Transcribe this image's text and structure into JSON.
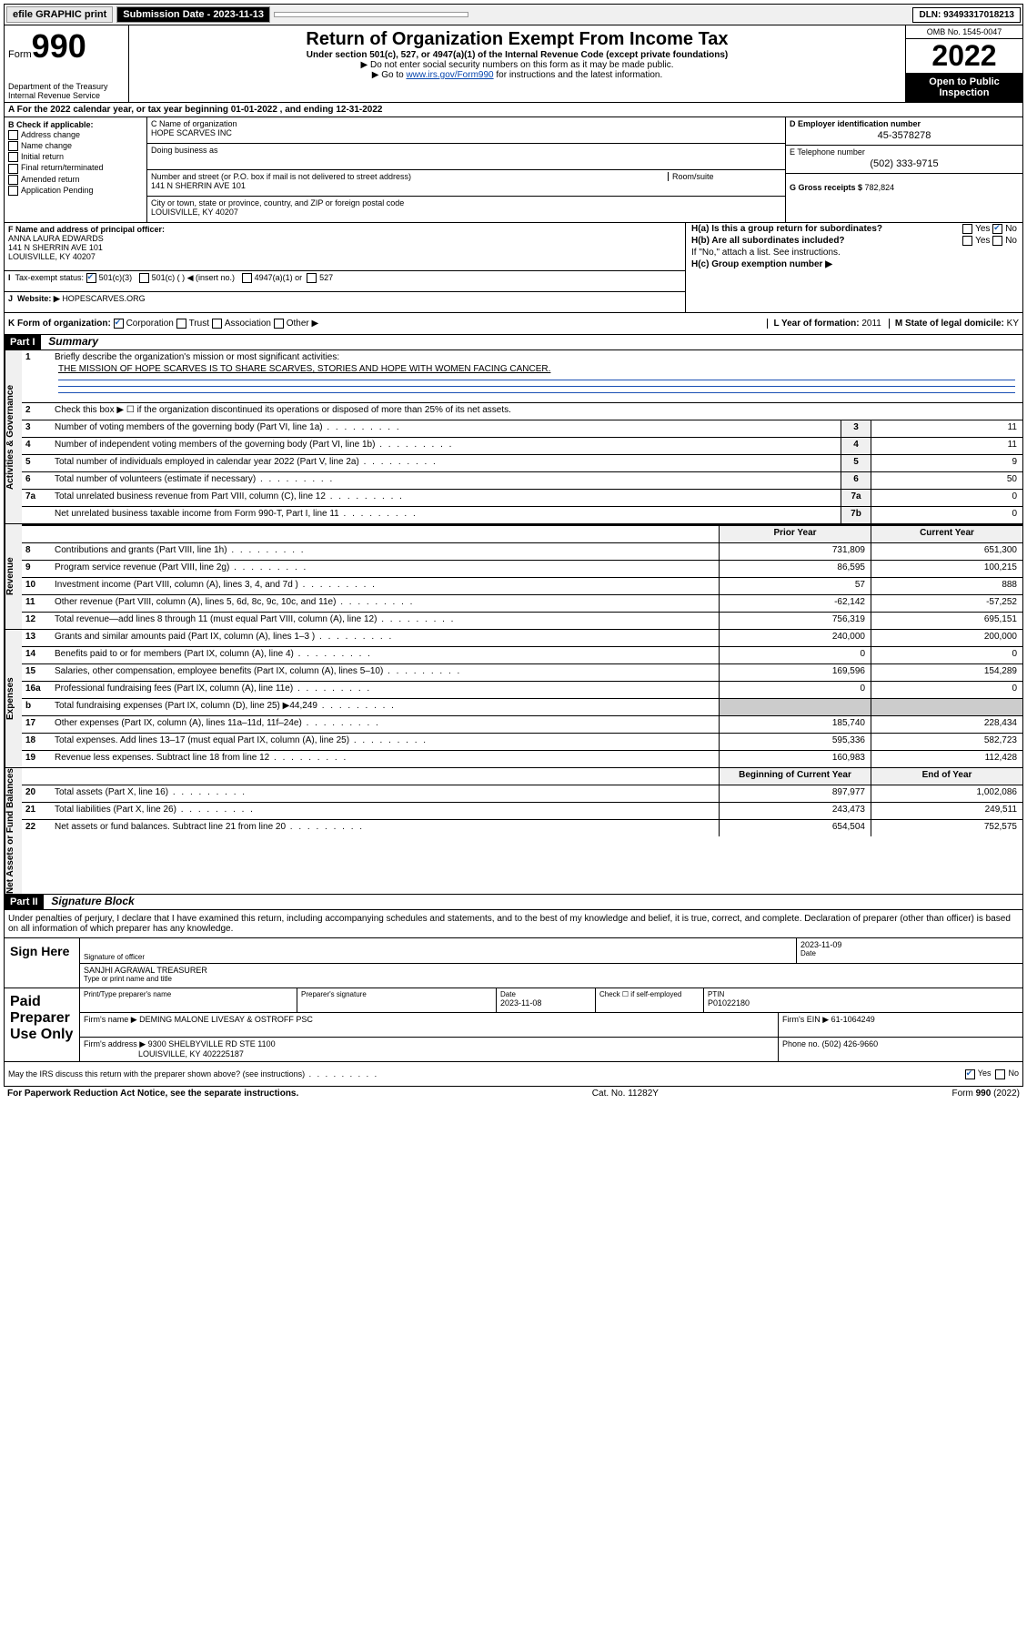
{
  "topbar": {
    "efile": "efile GRAPHIC print",
    "submission_label": "Submission Date - 2023-11-13",
    "dln": "DLN: 93493317018213"
  },
  "header": {
    "form_word": "Form",
    "form_number": "990",
    "department": "Department of the Treasury Internal Revenue Service",
    "title": "Return of Organization Exempt From Income Tax",
    "subtitle": "Under section 501(c), 527, or 4947(a)(1) of the Internal Revenue Code (except private foundations)",
    "note1": "▶ Do not enter social security numbers on this form as it may be made public.",
    "note2_pre": "▶ Go to ",
    "note2_link": "www.irs.gov/Form990",
    "note2_post": " for instructions and the latest information.",
    "omb": "OMB No. 1545-0047",
    "year": "2022",
    "open_public": "Open to Public Inspection"
  },
  "row_a": "A For the 2022 calendar year, or tax year beginning 01-01-2022    , and ending 12-31-2022",
  "col_b": {
    "header": "B Check if applicable:",
    "items": [
      "Address change",
      "Name change",
      "Initial return",
      "Final return/terminated",
      "Amended return",
      "Application Pending"
    ]
  },
  "col_c": {
    "name_label": "C Name of organization",
    "name": "HOPE SCARVES INC",
    "dba_label": "Doing business as",
    "street_label": "Number and street (or P.O. box if mail is not delivered to street address)",
    "room_label": "Room/suite",
    "street": "141 N SHERRIN AVE 101",
    "city_label": "City or town, state or province, country, and ZIP or foreign postal code",
    "city": "LOUISVILLE, KY  40207"
  },
  "col_de": {
    "d_label": "D Employer identification number",
    "d_val": "45-3578278",
    "e_label": "E Telephone number",
    "e_val": "(502) 333-9715",
    "g_label": "G Gross receipts $ ",
    "g_val": "782,824"
  },
  "fgh": {
    "f_label": "F  Name and address of principal officer:",
    "f_name": "ANNA LAURA EDWARDS",
    "f_addr1": "141 N SHERRIN AVE 101",
    "f_addr2": "LOUISVILLE, KY  40207",
    "i_label": "Tax-exempt status:",
    "i_501c3": "501(c)(3)",
    "i_501c": "501(c) (  ) ◀ (insert no.)",
    "i_4947": "4947(a)(1) or",
    "i_527": "527",
    "j_label": "Website: ▶",
    "j_val": "HOPESCARVES.ORG",
    "ha_label": "H(a)  Is this a group return for subordinates?",
    "ha_yes": "Yes",
    "ha_no": "No",
    "hb_label": "H(b)  Are all subordinates included?",
    "hb_yes": "Yes",
    "hb_no": "No",
    "hb_note": "If \"No,\" attach a list. See instructions.",
    "hc_label": "H(c)  Group exemption number ▶"
  },
  "row_k": {
    "label": "K Form of organization:",
    "corp": "Corporation",
    "trust": "Trust",
    "assoc": "Association",
    "other": "Other ▶",
    "l_label": "L Year of formation: ",
    "l_val": "2011",
    "m_label": "M State of legal domicile: ",
    "m_val": "KY"
  },
  "parts": {
    "p1_hdr": "Part I",
    "p1_title": "Summary",
    "p2_hdr": "Part II",
    "p2_title": "Signature Block"
  },
  "summary": {
    "line1_label": "Briefly describe the organization's mission or most significant activities:",
    "mission": "THE MISSION OF HOPE SCARVES IS TO SHARE SCARVES, STORIES AND HOPE WITH WOMEN FACING CANCER.",
    "line2_label": "Check this box ▶ ☐  if the organization discontinued its operations or disposed of more than 25% of its net assets.",
    "sec_labels": {
      "gov": "Activities & Governance",
      "rev": "Revenue",
      "exp": "Expenses",
      "net": "Net Assets or Fund Balances"
    },
    "col_headers": {
      "prior": "Prior Year",
      "current": "Current Year",
      "boy": "Beginning of Current Year",
      "eoy": "End of Year"
    },
    "gov_rows": [
      {
        "n": "3",
        "t": "Number of voting members of the governing body (Part VI, line 1a)",
        "box": "3",
        "v": "11"
      },
      {
        "n": "4",
        "t": "Number of independent voting members of the governing body (Part VI, line 1b)",
        "box": "4",
        "v": "11"
      },
      {
        "n": "5",
        "t": "Total number of individuals employed in calendar year 2022 (Part V, line 2a)",
        "box": "5",
        "v": "9"
      },
      {
        "n": "6",
        "t": "Total number of volunteers (estimate if necessary)",
        "box": "6",
        "v": "50"
      },
      {
        "n": "7a",
        "t": "Total unrelated business revenue from Part VIII, column (C), line 12",
        "box": "7a",
        "v": "0"
      },
      {
        "n": "",
        "t": "Net unrelated business taxable income from Form 990-T, Part I, line 11",
        "box": "7b",
        "v": "0"
      }
    ],
    "rev_rows": [
      {
        "n": "8",
        "t": "Contributions and grants (Part VIII, line 1h)",
        "p": "731,809",
        "c": "651,300"
      },
      {
        "n": "9",
        "t": "Program service revenue (Part VIII, line 2g)",
        "p": "86,595",
        "c": "100,215"
      },
      {
        "n": "10",
        "t": "Investment income (Part VIII, column (A), lines 3, 4, and 7d )",
        "p": "57",
        "c": "888"
      },
      {
        "n": "11",
        "t": "Other revenue (Part VIII, column (A), lines 5, 6d, 8c, 9c, 10c, and 11e)",
        "p": "-62,142",
        "c": "-57,252"
      },
      {
        "n": "12",
        "t": "Total revenue—add lines 8 through 11 (must equal Part VIII, column (A), line 12)",
        "p": "756,319",
        "c": "695,151"
      }
    ],
    "exp_rows": [
      {
        "n": "13",
        "t": "Grants and similar amounts paid (Part IX, column (A), lines 1–3 )",
        "p": "240,000",
        "c": "200,000"
      },
      {
        "n": "14",
        "t": "Benefits paid to or for members (Part IX, column (A), line 4)",
        "p": "0",
        "c": "0"
      },
      {
        "n": "15",
        "t": "Salaries, other compensation, employee benefits (Part IX, column (A), lines 5–10)",
        "p": "169,596",
        "c": "154,289"
      },
      {
        "n": "16a",
        "t": "Professional fundraising fees (Part IX, column (A), line 11e)",
        "p": "0",
        "c": "0"
      },
      {
        "n": "b",
        "t": "Total fundraising expenses (Part IX, column (D), line 25) ▶44,249",
        "p": "",
        "c": ""
      },
      {
        "n": "17",
        "t": "Other expenses (Part IX, column (A), lines 11a–11d, 11f–24e)",
        "p": "185,740",
        "c": "228,434"
      },
      {
        "n": "18",
        "t": "Total expenses. Add lines 13–17 (must equal Part IX, column (A), line 25)",
        "p": "595,336",
        "c": "582,723"
      },
      {
        "n": "19",
        "t": "Revenue less expenses. Subtract line 18 from line 12",
        "p": "160,983",
        "c": "112,428"
      }
    ],
    "net_rows": [
      {
        "n": "20",
        "t": "Total assets (Part X, line 16)",
        "p": "897,977",
        "c": "1,002,086"
      },
      {
        "n": "21",
        "t": "Total liabilities (Part X, line 26)",
        "p": "243,473",
        "c": "249,511"
      },
      {
        "n": "22",
        "t": "Net assets or fund balances. Subtract line 21 from line 20",
        "p": "654,504",
        "c": "752,575"
      }
    ]
  },
  "sig": {
    "penalties": "Under penalties of perjury, I declare that I have examined this return, including accompanying schedules and statements, and to the best of my knowledge and belief, it is true, correct, and complete. Declaration of preparer (other than officer) is based on all information of which preparer has any knowledge.",
    "sign_here": "Sign Here",
    "sig_officer_label": "Signature of officer",
    "sig_date": "2023-11-09",
    "date_label": "Date",
    "officer_name": "SANJHI AGRAWAL  TREASURER",
    "officer_name_label": "Type or print name and title",
    "paid_hdr": "Paid Preparer Use Only",
    "prep_name_label": "Print/Type preparer's name",
    "prep_sig_label": "Preparer's signature",
    "prep_date_label": "Date",
    "prep_date": "2023-11-08",
    "check_self": "Check ☐ if self-employed",
    "ptin_label": "PTIN",
    "ptin": "P01022180",
    "firm_name_label": "Firm's name      ▶",
    "firm_name": "DEMING MALONE LIVESAY & OSTROFF PSC",
    "firm_ein_label": "Firm's EIN ▶",
    "firm_ein": "61-1064249",
    "firm_addr_label": "Firm's address ▶",
    "firm_addr1": "9300 SHELBYVILLE RD STE 1100",
    "firm_addr2": "LOUISVILLE, KY 402225187",
    "phone_label": "Phone no.",
    "phone": "(502) 426-9660",
    "may_irs": "May the IRS discuss this return with the preparer shown above? (see instructions)",
    "may_yes": "Yes",
    "may_no": "No"
  },
  "footer": {
    "pra": "For Paperwork Reduction Act Notice, see the separate instructions.",
    "cat": "Cat. No. 11282Y",
    "form": "Form 990 (2022)"
  }
}
